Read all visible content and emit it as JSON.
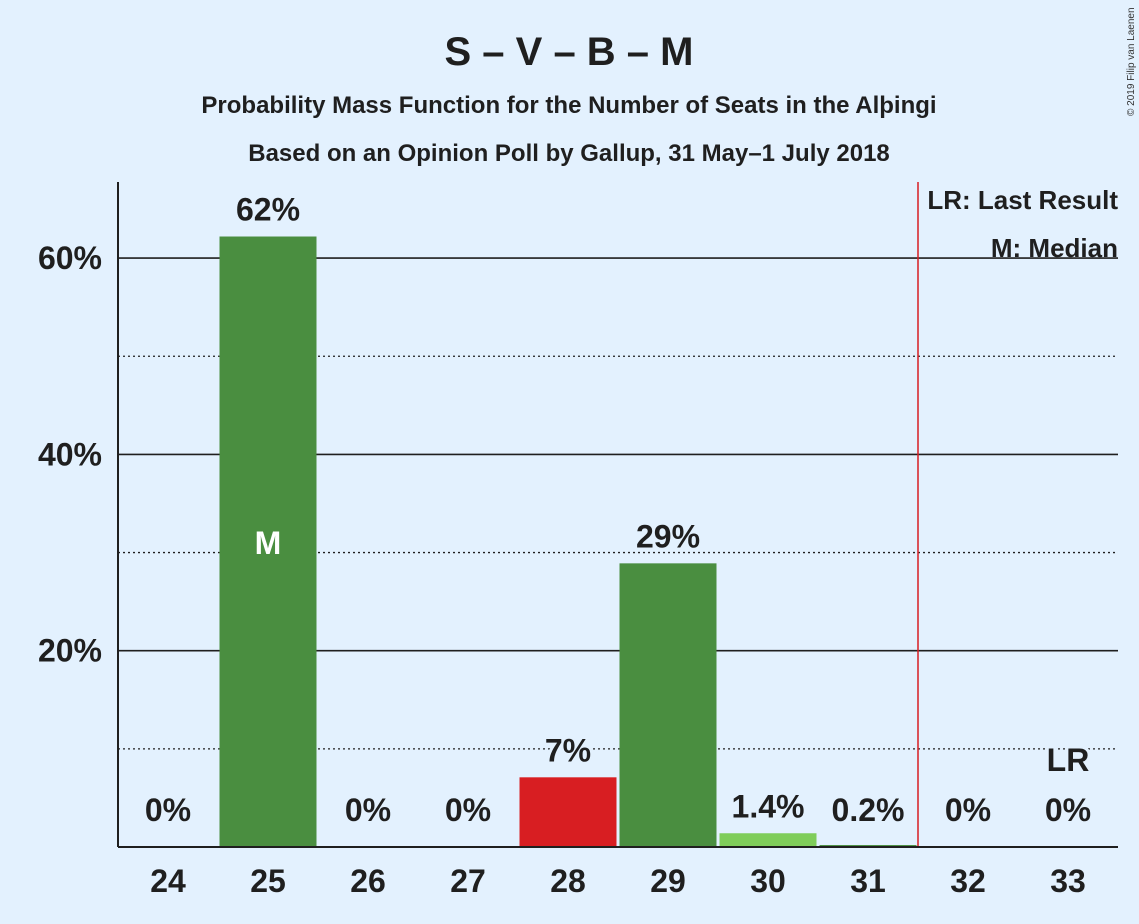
{
  "chart_data": {
    "type": "bar",
    "title": "S – V – B – M",
    "subtitle": "Probability Mass Function for the Number of Seats in the Alþingi",
    "subtitle2": "Based on an Opinion Poll by Gallup, 31 May–1 July 2018",
    "credit": "© 2019 Filip van Laenen",
    "categories": [
      "24",
      "25",
      "26",
      "27",
      "28",
      "29",
      "30",
      "31",
      "32",
      "33"
    ],
    "values": [
      0,
      62.2,
      0,
      0,
      7.1,
      28.9,
      1.4,
      0.2,
      0,
      0
    ],
    "data_labels": [
      "0%",
      "62%",
      "0%",
      "0%",
      "7%",
      "29%",
      "1.4%",
      "0.2%",
      "0%",
      "0%"
    ],
    "bar_colors": [
      "#4a8e40",
      "#4a8e40",
      "#4a8e40",
      "#4a8e40",
      "#d81e22",
      "#4a8e40",
      "#7fcd5a",
      "#4a8e40",
      "#4a8e40",
      "#4a8e40"
    ],
    "y_ticks": [
      20,
      40,
      60
    ],
    "y_tick_labels": [
      "20%",
      "40%",
      "60%"
    ],
    "y_minor_ticks": [
      10,
      30,
      50
    ],
    "ylim": [
      0,
      68
    ],
    "median_category": "25",
    "median_marker": "M",
    "last_result_category": "33",
    "last_result_marker": "LR",
    "last_result_line_after": "31",
    "legend": [
      "LR: Last Result",
      "M: Median"
    ],
    "legend_position": "top-right",
    "grid": true
  }
}
